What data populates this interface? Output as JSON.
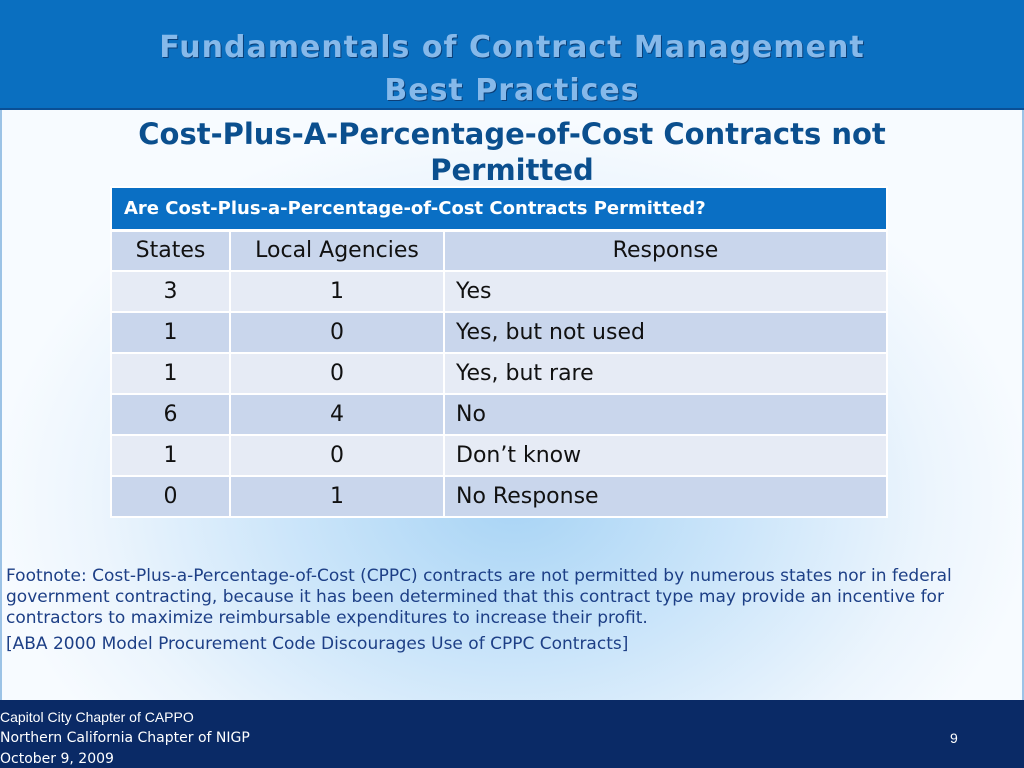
{
  "header": {
    "title_line1": "Fundamentals of Contract Management",
    "title_line2": "Best Practices"
  },
  "subtitle": {
    "line1": "Cost-Plus-A-Percentage-of-Cost Contracts not",
    "line2": "Permitted"
  },
  "table": {
    "title": "Are Cost-Plus-a-Percentage-of-Cost Contracts Permitted?",
    "columns": [
      "States",
      "Local Agencies",
      "Response"
    ],
    "rows": [
      {
        "states": "3",
        "local": "1",
        "response": "Yes"
      },
      {
        "states": "1",
        "local": "0",
        "response": "Yes, but not used"
      },
      {
        "states": "1",
        "local": "0",
        "response": "Yes, but rare"
      },
      {
        "states": "6",
        "local": "4",
        "response": "No"
      },
      {
        "states": "1",
        "local": "0",
        "response": "Don’t know"
      },
      {
        "states": "0",
        "local": "1",
        "response": "No Response"
      }
    ]
  },
  "footnote": {
    "text": "Footnote: Cost-Plus-a-Percentage-of-Cost (CPPC) contracts are not permitted by numerous states nor in federal government contracting, because it has been determined that this contract type may provide an incentive for contractors to maximize reimbursable expenditures to increase their profit.",
    "reference": "[ABA 2000 Model Procurement Code Discourages Use of CPPC Contracts]"
  },
  "footer": {
    "line1": "Capitol City Chapter of CAPPO",
    "line2": "Northern California Chapter of NIGP",
    "line3": "October 9, 2009",
    "page_number": "9"
  },
  "colors": {
    "header_bg": "#0a6fc0",
    "header_text": "#86b9ea",
    "subtitle_text": "#0b4f8e",
    "table_title_bg": "#0a6fc4",
    "row_dark": "#c9d6ec",
    "row_light": "#e6ebf5",
    "footnote_text": "#1d3f86",
    "footer_bg": "#0a2a66"
  }
}
